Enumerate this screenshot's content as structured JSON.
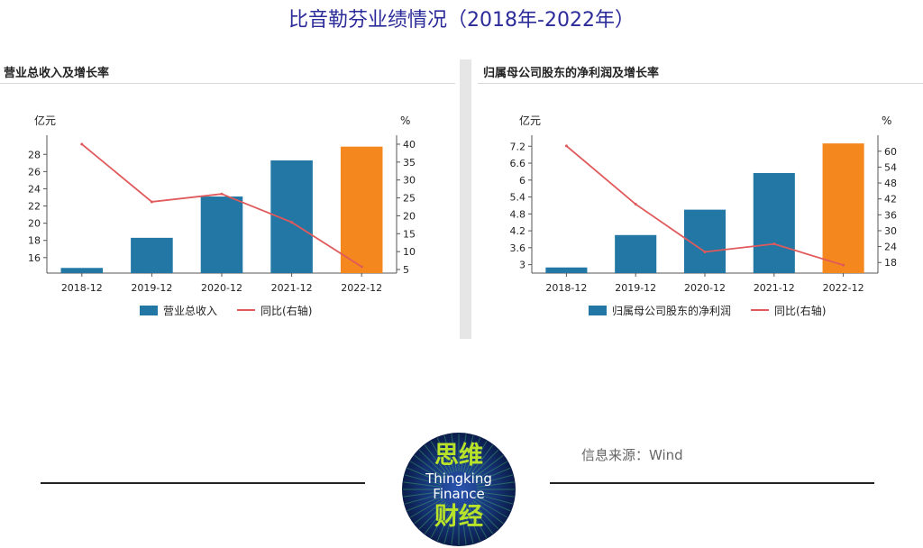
{
  "page": {
    "title": "比音勒芬业绩情况（2018年-2022年）"
  },
  "panels": [
    {
      "title": "营业总收入及增长率"
    },
    {
      "title": "归属母公司股东的净利润及增长率"
    }
  ],
  "colors": {
    "bar": "#2277a5",
    "bar_highlight": "#f5871f",
    "line": "#e0595b",
    "title": "#2b2b9a"
  },
  "chart_data": [
    {
      "type": "bar",
      "title": "营业总收入及增长率",
      "categories": [
        "2018-12",
        "2019-12",
        "2020-12",
        "2021-12",
        "2022-12"
      ],
      "series": [
        {
          "name": "营业总收入",
          "kind": "bar",
          "axis": "left",
          "values": [
            14.8,
            18.3,
            23.1,
            27.3,
            28.9
          ]
        },
        {
          "name": "同比(右轴)",
          "kind": "line",
          "axis": "right",
          "values": [
            40.0,
            23.9,
            26.1,
            18.2,
            5.8
          ]
        }
      ],
      "ylabel_left": "亿元",
      "ylabel_right": "%",
      "ylim_left": [
        14.2,
        29.6
      ],
      "yticks_left": [
        16,
        18,
        20,
        22,
        24,
        26,
        28
      ],
      "ylim_right": [
        4.0,
        41.0
      ],
      "yticks_right": [
        5,
        10,
        15,
        20,
        25,
        30,
        35,
        40
      ],
      "highlight_index": 4,
      "legend": "bottom"
    },
    {
      "type": "bar",
      "title": "归属母公司股东的净利润及增长率",
      "categories": [
        "2018-12",
        "2019-12",
        "2020-12",
        "2021-12",
        "2022-12"
      ],
      "series": [
        {
          "name": "归属母公司股东的净利润",
          "kind": "bar",
          "axis": "left",
          "values": [
            2.9,
            4.05,
            4.95,
            6.25,
            7.3
          ]
        },
        {
          "name": "同比(右轴)",
          "kind": "line",
          "axis": "right",
          "values": [
            62.0,
            40.0,
            22.0,
            25.0,
            17.0
          ]
        }
      ],
      "ylabel_left": "亿元",
      "ylabel_right": "%",
      "ylim_left": [
        2.7,
        7.4
      ],
      "yticks_left": [
        3,
        3.6,
        4.2,
        4.8,
        5.4,
        6,
        6.6,
        7.2
      ],
      "ylim_right": [
        14.0,
        64.0
      ],
      "yticks_right": [
        18,
        24,
        30,
        36,
        42,
        48,
        54,
        60
      ],
      "highlight_index": 4,
      "legend": "bottom"
    }
  ],
  "footer": {
    "source": "信息来源：Wind",
    "logo": {
      "cn_top": "思维",
      "en_1": "Thingking",
      "en_2": "Finance",
      "cn_bottom": "财经"
    }
  }
}
